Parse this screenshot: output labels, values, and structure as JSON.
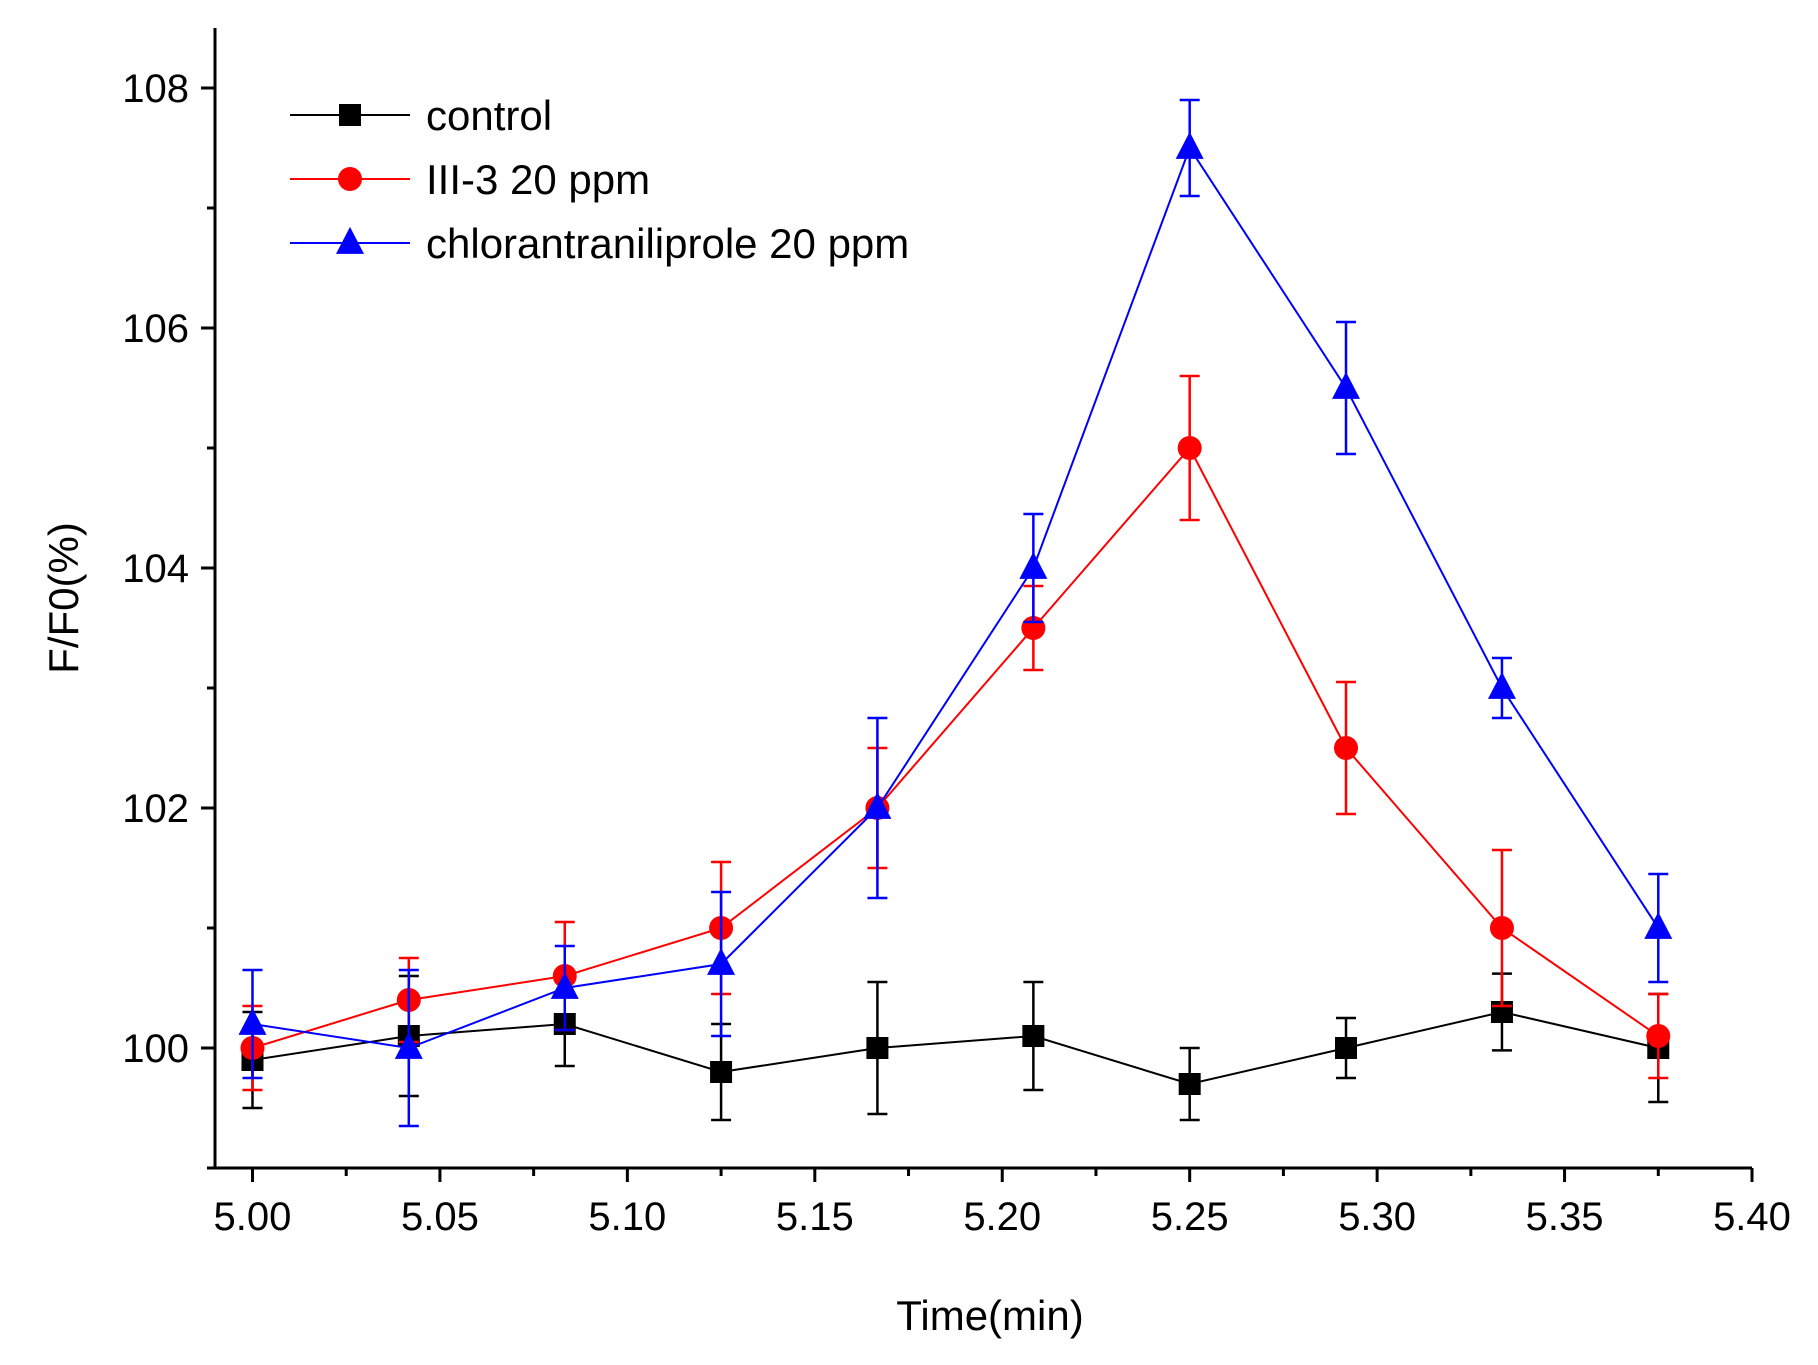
{
  "chart_data": {
    "type": "line",
    "title": "",
    "xlabel": "Time(min)",
    "ylabel": "F/F0(%)",
    "xlim": [
      4.99,
      5.4
    ],
    "ylim": [
      99.0,
      108.5
    ],
    "x_ticks": [
      "5.00",
      "5.05",
      "5.10",
      "5.15",
      "5.20",
      "5.25",
      "5.30",
      "5.35",
      "5.40"
    ],
    "x_tick_values": [
      5.0,
      5.05,
      5.1,
      5.15,
      5.2,
      5.25,
      5.3,
      5.35,
      5.4
    ],
    "y_ticks": [
      "100",
      "102",
      "104",
      "106",
      "108"
    ],
    "y_tick_values": [
      100,
      102,
      104,
      106,
      108
    ],
    "legend_position": "top-left",
    "x": [
      5.0,
      5.0417,
      5.0833,
      5.125,
      5.1667,
      5.2083,
      5.25,
      5.2917,
      5.3333,
      5.375
    ],
    "series": [
      {
        "name": "control",
        "color": "#000000",
        "marker": "square",
        "values": [
          99.9,
          100.1,
          100.2,
          99.8,
          100.0,
          100.1,
          99.7,
          100.0,
          100.3,
          100.0
        ],
        "errors": [
          0.4,
          0.5,
          0.35,
          0.4,
          0.55,
          0.45,
          0.3,
          0.25,
          0.32,
          0.45
        ]
      },
      {
        "name": "III-3 20 ppm",
        "color": "#ff0000",
        "marker": "circle",
        "values": [
          100.0,
          100.4,
          100.6,
          101.0,
          102.0,
          103.5,
          105.0,
          102.5,
          101.0,
          100.1
        ],
        "errors": [
          0.35,
          0.35,
          0.45,
          0.55,
          0.5,
          0.35,
          0.6,
          0.55,
          0.65,
          0.35
        ]
      },
      {
        "name": "chlorantraniliprole 20 ppm",
        "color": "#0000ff",
        "marker": "triangle",
        "values": [
          100.2,
          100.0,
          100.5,
          100.7,
          102.0,
          104.0,
          107.5,
          105.5,
          103.0,
          101.0
        ],
        "errors": [
          0.45,
          0.65,
          0.35,
          0.6,
          0.75,
          0.45,
          0.4,
          0.55,
          0.25,
          0.45
        ]
      }
    ]
  }
}
